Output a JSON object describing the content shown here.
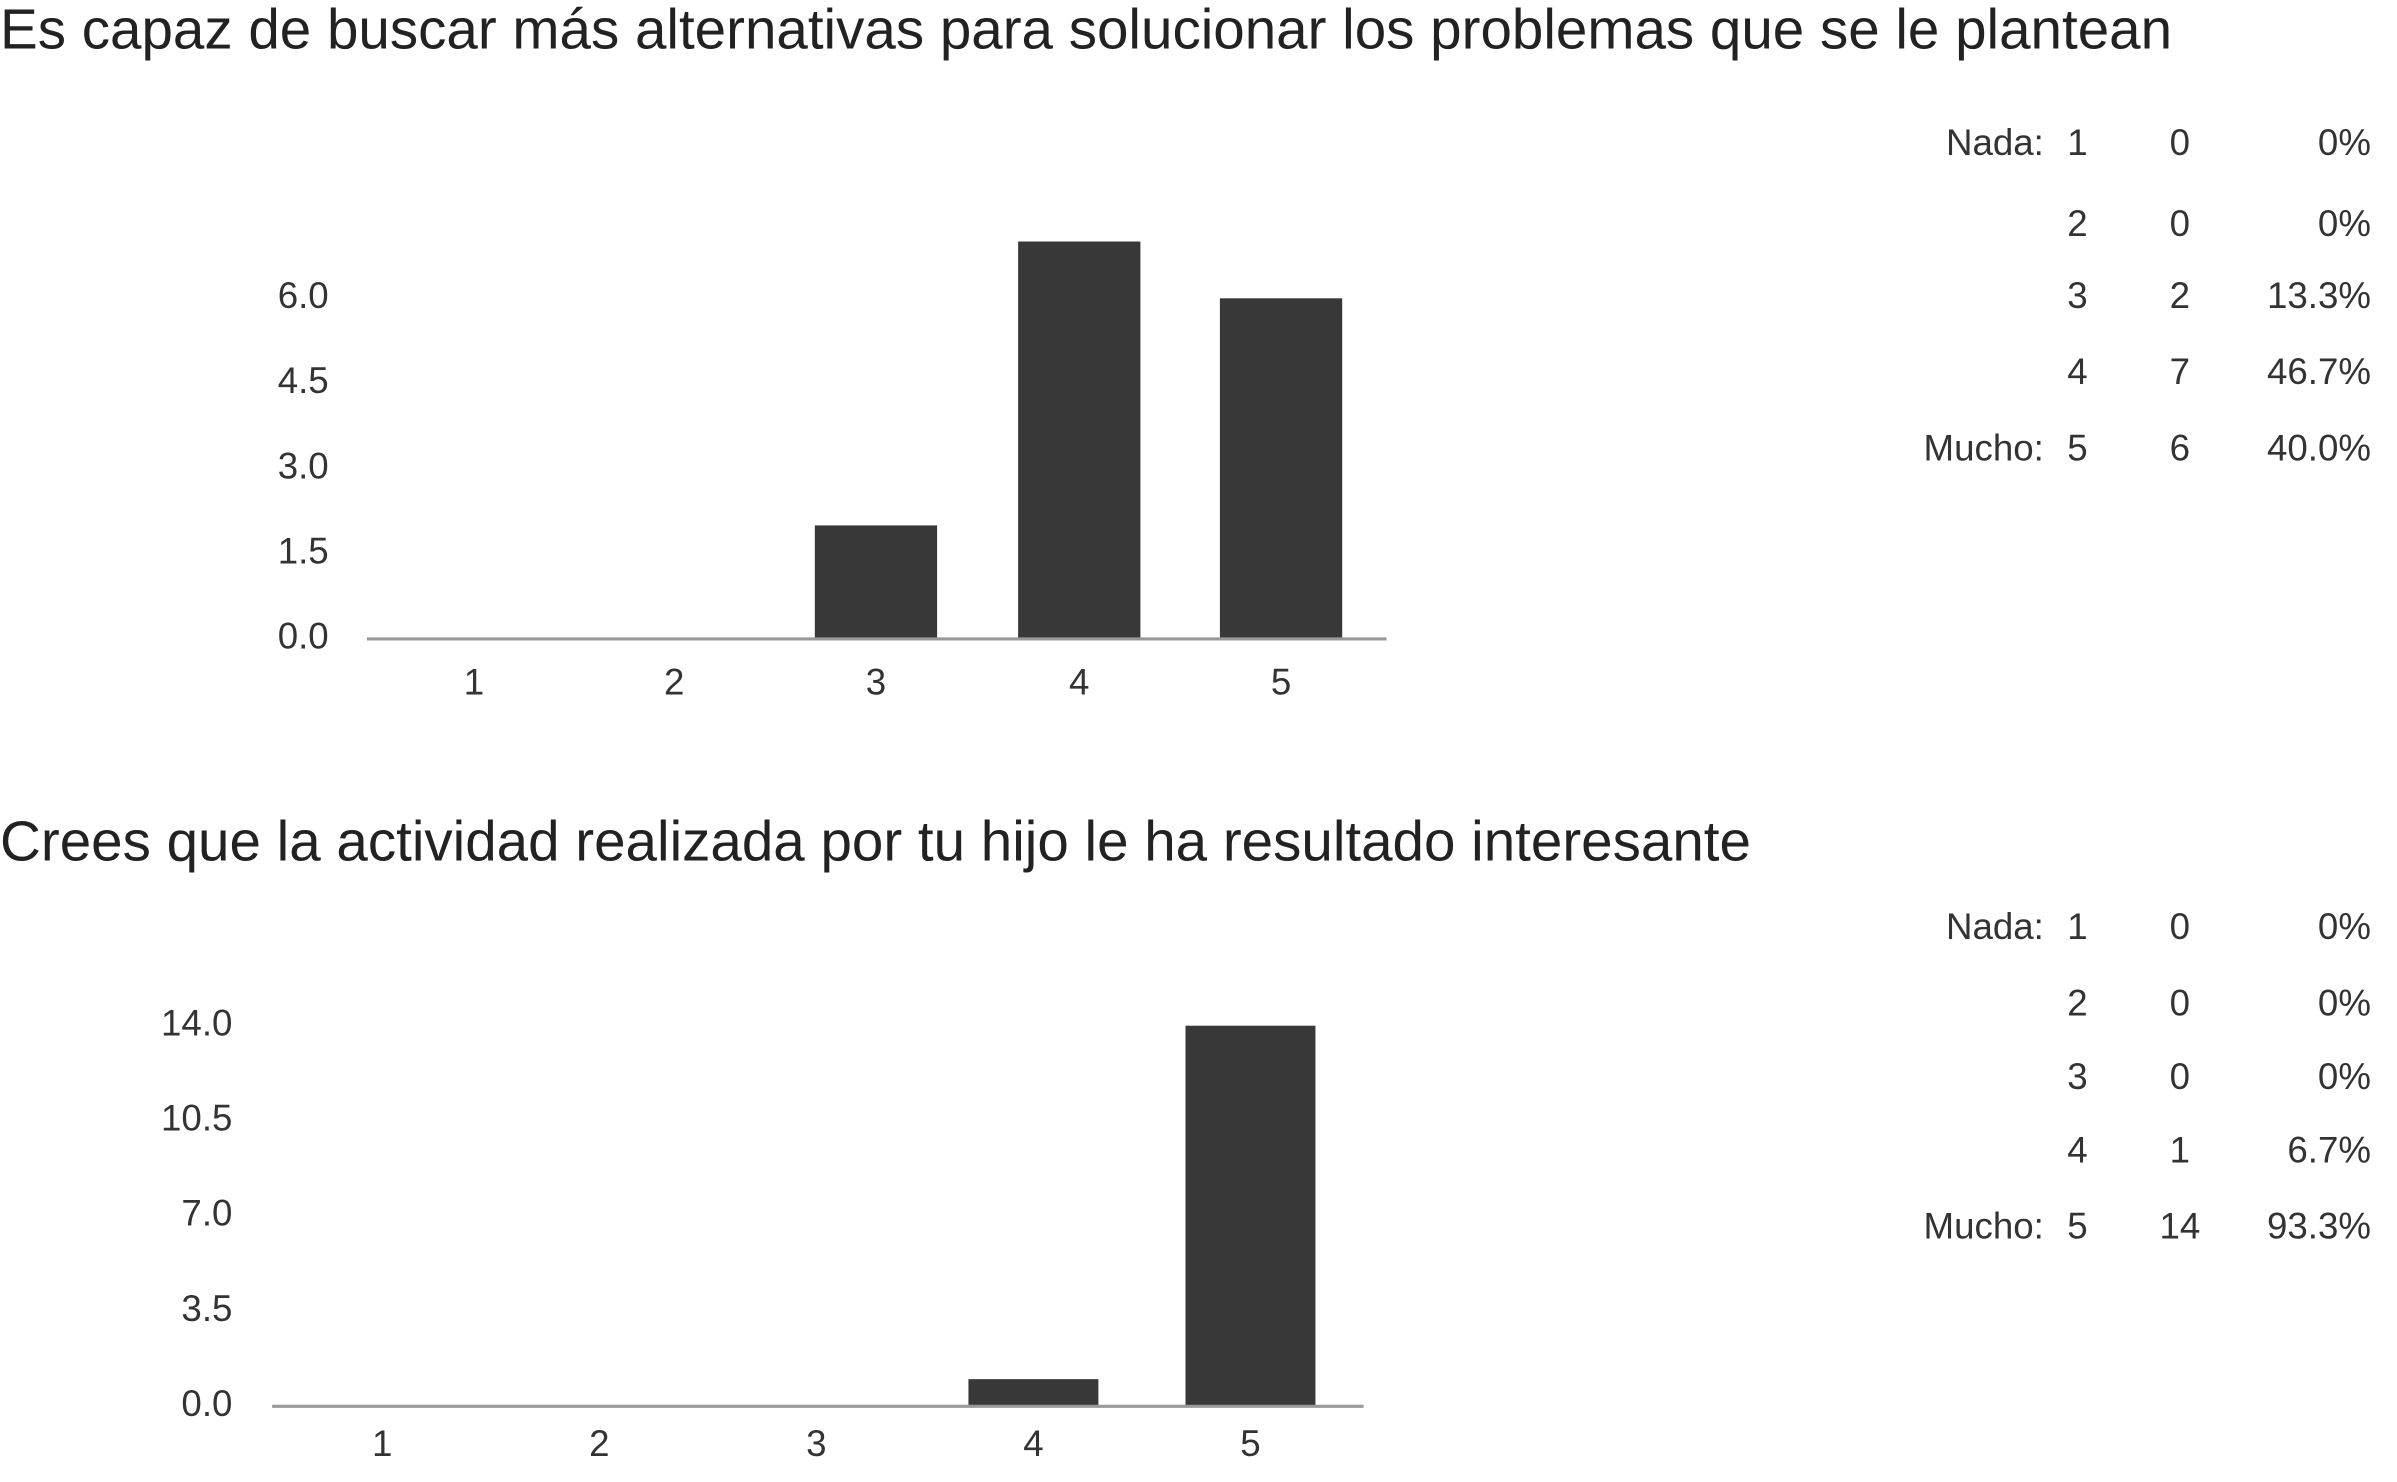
{
  "chart_data": [
    {
      "type": "bar",
      "title": "Es capaz de buscar más alternativas para solucionar los problemas que se le plantean",
      "categories": [
        "1",
        "2",
        "3",
        "4",
        "5"
      ],
      "values": [
        0,
        0,
        2,
        7,
        6
      ],
      "color": "#383838",
      "ylim": [
        0,
        7
      ],
      "yticks": [
        {
          "value": 0,
          "label": "0.0"
        },
        1.5,
        {
          "value": 3,
          "label": "3.0"
        },
        4.5,
        {
          "value": 6,
          "label": "6.0"
        }
      ],
      "table": {
        "rows": [
          [
            "Nada:",
            1,
            0,
            "0%"
          ],
          [
            null,
            2,
            0,
            "0%"
          ],
          [
            null,
            3,
            2,
            "13.3%"
          ],
          [
            null,
            4,
            7,
            "46.7%"
          ],
          [
            "Mucho:",
            5,
            6,
            "40.0%"
          ]
        ]
      }
    },
    {
      "type": "bar",
      "title": "Crees que la actividad realizada por tu hijo le ha resultado interesante",
      "categories": [
        "1",
        "2",
        "3",
        "4",
        "5"
      ],
      "values": [
        0,
        0,
        0,
        1,
        14
      ],
      "color": "#383838",
      "ylim": [
        0,
        14
      ],
      "yticks": [
        {
          "value": 0,
          "label": "0.0"
        },
        3.5,
        {
          "value": 7,
          "label": "7.0"
        },
        10.5,
        {
          "value": 14,
          "label": "14.0"
        }
      ],
      "table": {
        "rows": [
          [
            "Nada:",
            1,
            0,
            "0%"
          ],
          [
            null,
            2,
            0,
            "0%"
          ],
          [
            null,
            3,
            0,
            "0%"
          ],
          [
            null,
            4,
            1,
            "6.7%"
          ],
          [
            "Mucho:",
            5,
            14,
            "93.3%"
          ]
        ]
      }
    }
  ]
}
